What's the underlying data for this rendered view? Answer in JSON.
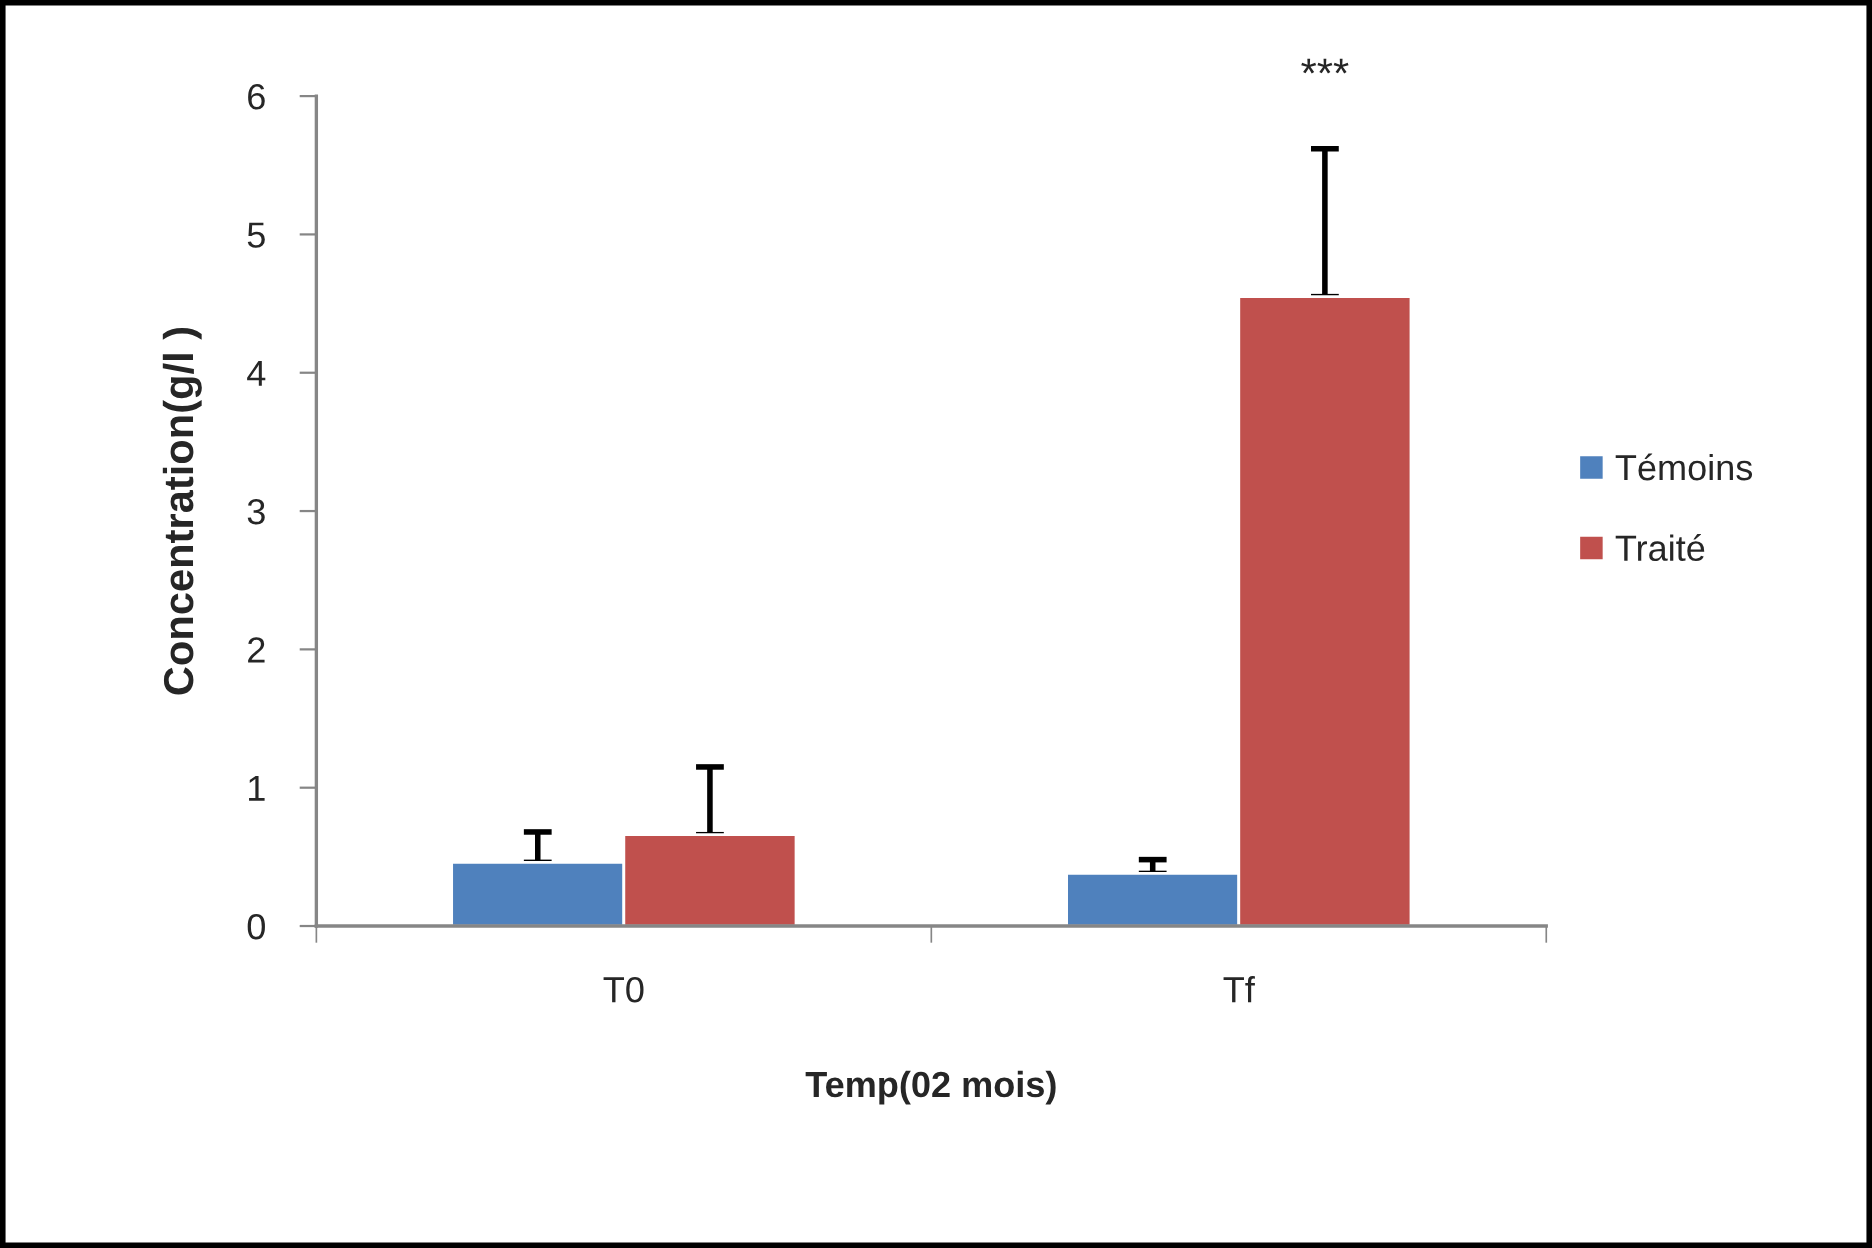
{
  "chart_data": {
    "type": "bar",
    "xlabel": "Temp(02 mois)",
    "ylabel": "Concentration(g/l )",
    "categories": [
      "T0",
      "Tf"
    ],
    "series": [
      {
        "name": "Témoins",
        "color": "#4f81bd",
        "values": [
          0.46,
          0.38
        ],
        "errors": [
          [
            0.46,
            0.68
          ],
          [
            0.38,
            0.48
          ]
        ]
      },
      {
        "name": "Traité",
        "color": "#c0504d",
        "values": [
          0.66,
          4.55
        ],
        "errors": [
          [
            0.66,
            1.15
          ],
          [
            4.55,
            5.62
          ]
        ]
      }
    ],
    "ylim": [
      0,
      6
    ],
    "yticks": [
      0,
      1,
      2,
      3,
      4,
      5,
      6
    ],
    "grid": false,
    "legend": "right",
    "annotations": [
      "***"
    ]
  }
}
